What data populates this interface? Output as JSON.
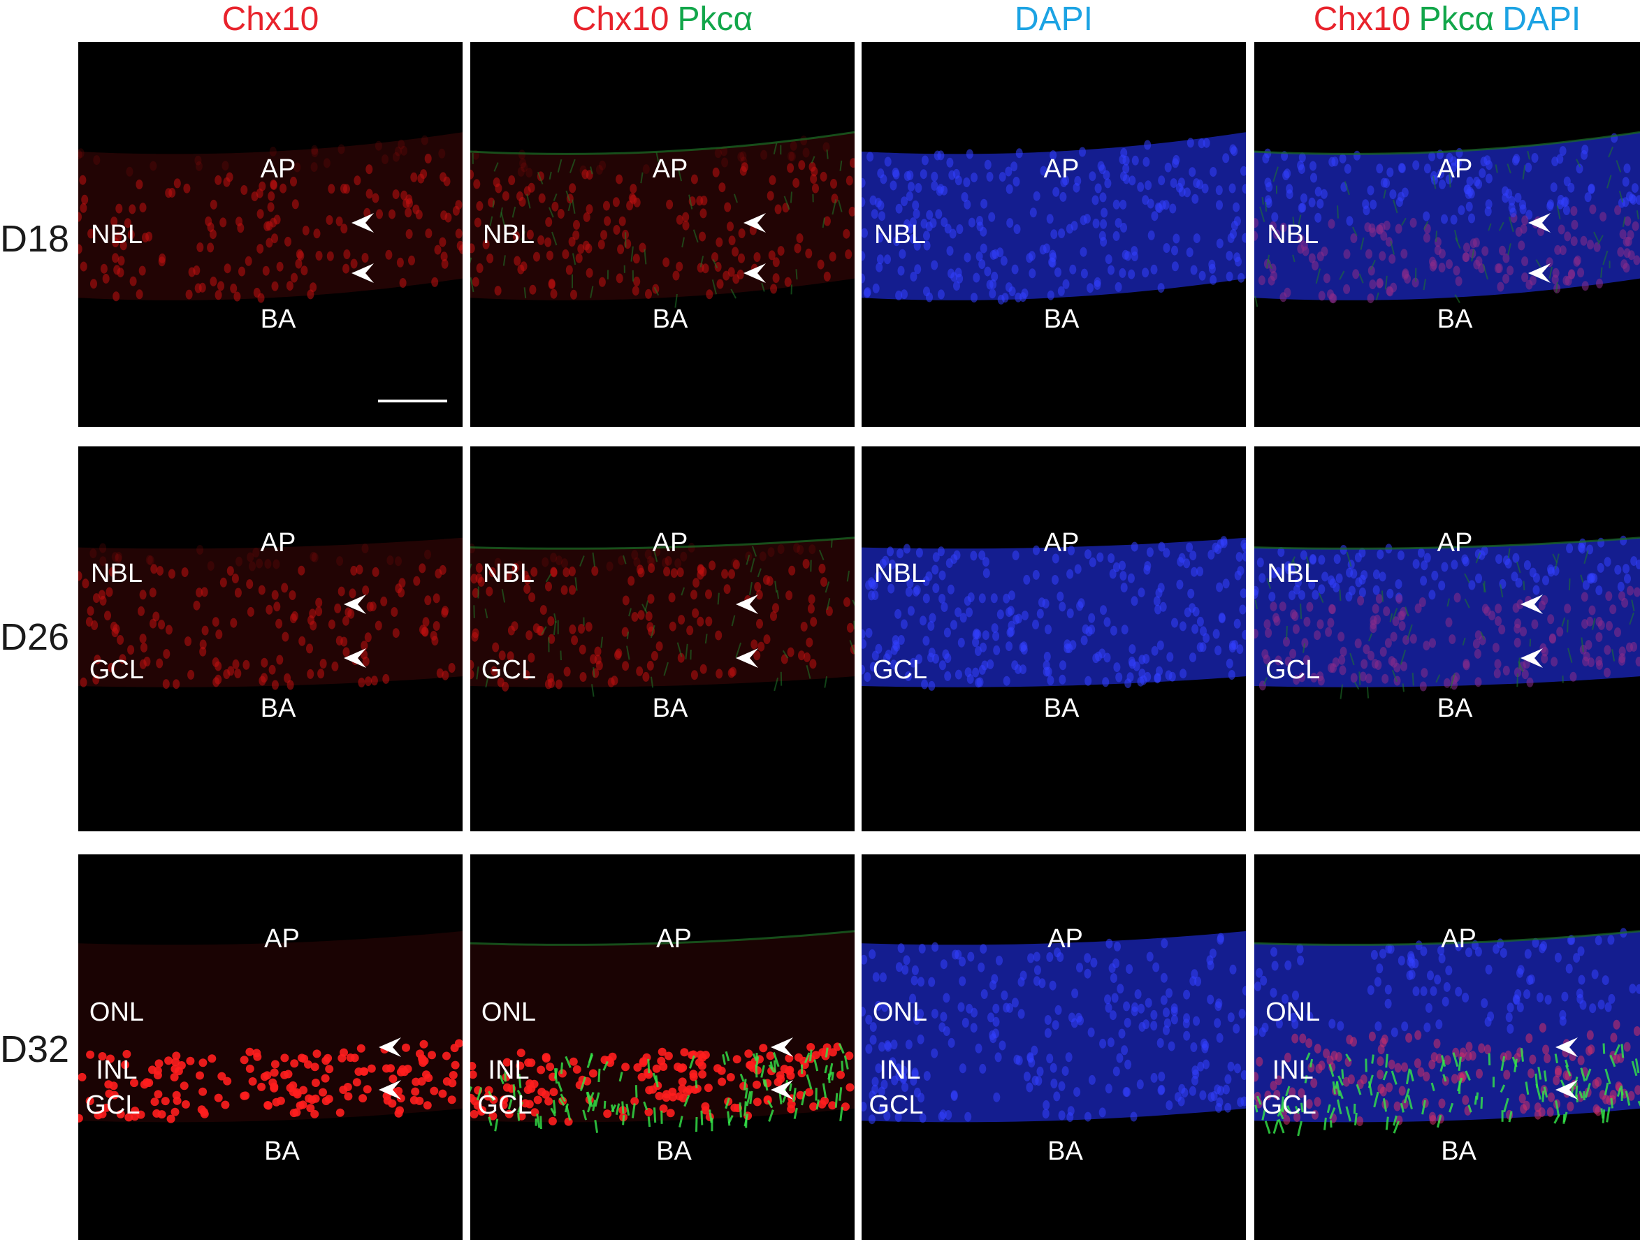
{
  "colors": {
    "chx10": "#e8232c",
    "pkca": "#12a64a",
    "dapi": "#1ca3e3",
    "label": "#ffffff",
    "panel_bg": "#000000"
  },
  "columns": [
    {
      "parts": [
        {
          "text": "Chx10",
          "color": "#e8232c"
        }
      ]
    },
    {
      "parts": [
        {
          "text": "Chx10",
          "color": "#e8232c"
        },
        {
          "text": "Pkcα",
          "color": "#12a64a"
        }
      ]
    },
    {
      "parts": [
        {
          "text": "DAPI",
          "color": "#1ca3e3"
        }
      ]
    },
    {
      "parts": [
        {
          "text": "Chx10",
          "color": "#e8232c"
        },
        {
          "text": "Pkcα",
          "color": "#12a64a"
        },
        {
          "text": "DAPI",
          "color": "#1ca3e3"
        }
      ]
    }
  ],
  "rows": [
    {
      "label": "D18",
      "layers": [
        "AP",
        "NBL",
        "BA"
      ]
    },
    {
      "label": "D26",
      "layers": [
        "AP",
        "NBL",
        "GCL",
        "BA"
      ]
    },
    {
      "label": "D32",
      "layers": [
        "AP",
        "ONL",
        "INL",
        "GCL",
        "BA"
      ]
    }
  ],
  "panel_channels": [
    "red",
    "red-green",
    "blue",
    "merge"
  ],
  "icons": {
    "arrowhead": "arrowhead-icon",
    "scale_bar": "scale-bar"
  }
}
